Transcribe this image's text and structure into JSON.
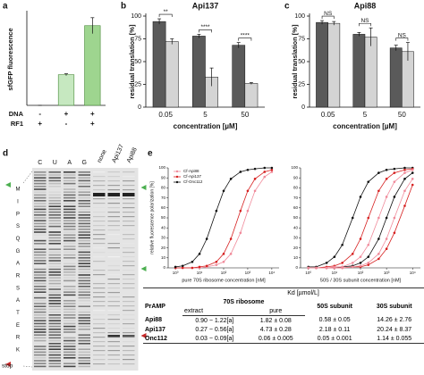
{
  "panel_labels": [
    "a",
    "b",
    "c",
    "d",
    "e"
  ],
  "chart_data": [
    {
      "type": "bar",
      "ylabel": "sfGFP fluorescence",
      "values": [
        0,
        1000,
        2600
      ],
      "errors": [
        0,
        30,
        260
      ],
      "colors": [
        "#c6e8c0",
        "#c6e8c0",
        "#9ed58f"
      ],
      "edge": "#4a8a3a",
      "ylim": [
        0,
        3000
      ],
      "row_labels": [
        "DNA",
        "RF1"
      ],
      "rows": [
        [
          "-",
          "+",
          "+"
        ],
        [
          "+",
          "-",
          "+"
        ]
      ]
    },
    {
      "type": "bar",
      "title": "Api137",
      "ylabel": "residual translation [%]",
      "xlabel": "concentration [µM]",
      "categories": [
        "0.05",
        "5",
        "50"
      ],
      "ylim": [
        0,
        100
      ],
      "yticks": [
        0,
        25,
        50,
        75,
        100
      ],
      "series": [
        {
          "color": "#5a5a5a",
          "values": [
            94,
            78,
            68
          ],
          "errors": [
            3,
            2,
            3
          ]
        },
        {
          "color": "#d4d4d4",
          "values": [
            72,
            33,
            26
          ],
          "errors": [
            3,
            10,
            1
          ]
        }
      ],
      "significance": [
        "**",
        "****",
        "****"
      ]
    },
    {
      "type": "bar",
      "title": "Api88",
      "ylabel": "residual translation [%]",
      "xlabel": "concentration [µM]",
      "categories": [
        "0.05",
        "5",
        "50"
      ],
      "ylim": [
        0,
        100
      ],
      "yticks": [
        0,
        25,
        50,
        75,
        100
      ],
      "series": [
        {
          "color": "#5a5a5a",
          "values": [
            93,
            80,
            65
          ],
          "errors": [
            2,
            2,
            3
          ]
        },
        {
          "color": "#d4d4d4",
          "values": [
            92,
            77,
            61
          ],
          "errors": [
            2,
            10,
            10
          ]
        }
      ],
      "significance": [
        "NS",
        "NS",
        "NS"
      ]
    },
    {
      "type": "line",
      "ylabel": "relative fluorescence polarization [%]",
      "xlabel": "pure 70S ribosome concentration [nM]",
      "log_x": true,
      "xlim": [
        0.5,
        20000
      ],
      "ylim": [
        0,
        100
      ],
      "xticks": [
        {
          "value": 1,
          "label": "10⁰"
        },
        {
          "value": 10,
          "label": "10¹"
        },
        {
          "value": 100,
          "label": "10²"
        },
        {
          "value": 1000,
          "label": "10³"
        },
        {
          "value": 10000,
          "label": "10⁴"
        }
      ],
      "yticks": [
        0,
        10,
        20,
        30,
        40,
        50,
        60,
        70,
        80,
        90,
        100
      ],
      "x": [
        1,
        2,
        5,
        10,
        20,
        50,
        100,
        200,
        500,
        1000,
        2000,
        5000,
        10000
      ],
      "legend": "upper left",
      "series": [
        {
          "name": "Cf-Api88",
          "color": "#f08a9a",
          "values": [
            0,
            0,
            0,
            0,
            1,
            3,
            6,
            14,
            35,
            57,
            77,
            91,
            96
          ]
        },
        {
          "name": "Cf-Api137",
          "color": "#d62020",
          "values": [
            0,
            0,
            0,
            1,
            2,
            6,
            14,
            29,
            57,
            77,
            89,
            96,
            98
          ]
        },
        {
          "name": "Cf-Onc112",
          "color": "#111111",
          "values": [
            1,
            2,
            6,
            14,
            29,
            57,
            77,
            89,
            96,
            98,
            99,
            100,
            100
          ]
        }
      ]
    },
    {
      "type": "line",
      "xlabel": "50S / 30S subunit concentration [nM]",
      "log_x": true,
      "xlim": [
        0.5,
        20000
      ],
      "ylim": [
        0,
        100
      ],
      "xticks": [
        {
          "value": 1,
          "label": "10⁰"
        },
        {
          "value": 10,
          "label": "10¹"
        },
        {
          "value": 100,
          "label": "10²"
        },
        {
          "value": 1000,
          "label": "10³"
        },
        {
          "value": 10000,
          "label": "10⁴"
        }
      ],
      "yticks": [
        0,
        10,
        20,
        30,
        40,
        50,
        60,
        70,
        80,
        90,
        100
      ],
      "x": [
        1,
        2,
        5,
        10,
        20,
        50,
        100,
        200,
        500,
        1000,
        2000,
        5000,
        10000
      ],
      "series": [
        {
          "color": "#111111",
          "values": [
            1,
            1,
            5,
            11,
            23,
            50,
            71,
            86,
            95,
            98,
            99,
            100,
            100
          ]
        },
        {
          "color": "#111111",
          "values": [
            0,
            0,
            0,
            0,
            1,
            2,
            5,
            11,
            29,
            50,
            71,
            89,
            95
          ]
        },
        {
          "color": "#d62020",
          "values": [
            0,
            0,
            1,
            2,
            5,
            14,
            29,
            50,
            77,
            89,
            95,
            98,
            99
          ]
        },
        {
          "color": "#d62020",
          "values": [
            0,
            0,
            0,
            0,
            0,
            1,
            1,
            3,
            9,
            19,
            35,
            62,
            83
          ]
        },
        {
          "color": "#f08a9a",
          "values": [
            0,
            0,
            0,
            1,
            1,
            5,
            11,
            23,
            50,
            71,
            86,
            95,
            98
          ]
        },
        {
          "color": "#f08a9a",
          "values": [
            0,
            0,
            0,
            0,
            0,
            1,
            2,
            5,
            14,
            29,
            50,
            77,
            89
          ]
        }
      ]
    }
  ],
  "gel": {
    "lanes": [
      "C",
      "U",
      "A",
      "G",
      "none",
      "Api137",
      "Api88"
    ],
    "sequence": [
      "M",
      "I",
      "P",
      "S",
      "Q",
      "G",
      "A",
      "R",
      "S",
      "A",
      "T",
      "E",
      "R",
      "K"
    ],
    "stop": "stop"
  },
  "table": {
    "kd_header": "Kd [µmol/L]",
    "header": [
      "PrAMP",
      "70S ribosome",
      "50S subunit",
      "30S subunit"
    ],
    "subheader": [
      "extract",
      "pure"
    ],
    "rows": [
      [
        "Api88",
        "0.90 − 1.22[a]",
        "1.82 ± 0.08",
        "0.58 ± 0.05",
        "14.26 ± 2.76"
      ],
      [
        "Api137",
        "0.27 − 0.56[a]",
        "4.73 ± 0.28",
        "2.18 ± 0.11",
        "20.24 ± 8.37"
      ],
      [
        "Onc112",
        "0.03 − 0.09[a]",
        "0.06 ± 0.005",
        "0.05 ± 0.001",
        "1.14 ± 0.055"
      ]
    ]
  }
}
